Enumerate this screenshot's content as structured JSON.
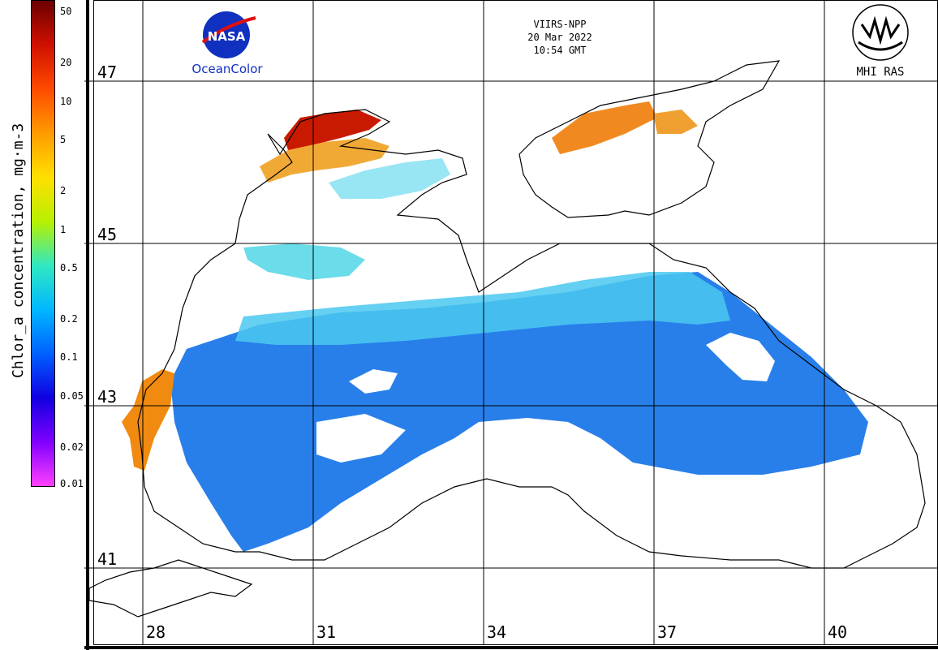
{
  "header": {
    "sensor": "VIIRS-NPP",
    "date": "20 Mar 2022",
    "time": "10:54 GMT"
  },
  "logos": {
    "nasa": {
      "wordmark": "NASA",
      "caption": "OceanColor"
    },
    "mhi": {
      "caption": "MHI RAS"
    }
  },
  "colorbar": {
    "title": "Chlor_a concentration, mg·m-3",
    "scale": "log",
    "ticks": [
      "50",
      "20",
      "10",
      "5",
      "2",
      "1",
      "0.5",
      "0.2",
      "0.1",
      "0.05",
      "0.02",
      "0.01"
    ],
    "gradient_colors": [
      "#6b0000",
      "#d01000",
      "#ff4a00",
      "#ff9b00",
      "#ffe000",
      "#b8f000",
      "#30e8c0",
      "#00b8ff",
      "#0060ff",
      "#1000e0",
      "#8000ff",
      "#ff40ff"
    ]
  },
  "grid": {
    "latitudes": [
      "47",
      "45",
      "43",
      "41"
    ],
    "longitudes": [
      "28",
      "31",
      "34",
      "37",
      "40"
    ]
  },
  "colors": {
    "land": "#ffffff",
    "coast": "#000000",
    "cloud": "#ffffff",
    "low_chl": "#1c78e8",
    "mid_chl": "#4ad0f0",
    "high_chl": "#f08a10",
    "very_high_chl": "#c81a00"
  }
}
